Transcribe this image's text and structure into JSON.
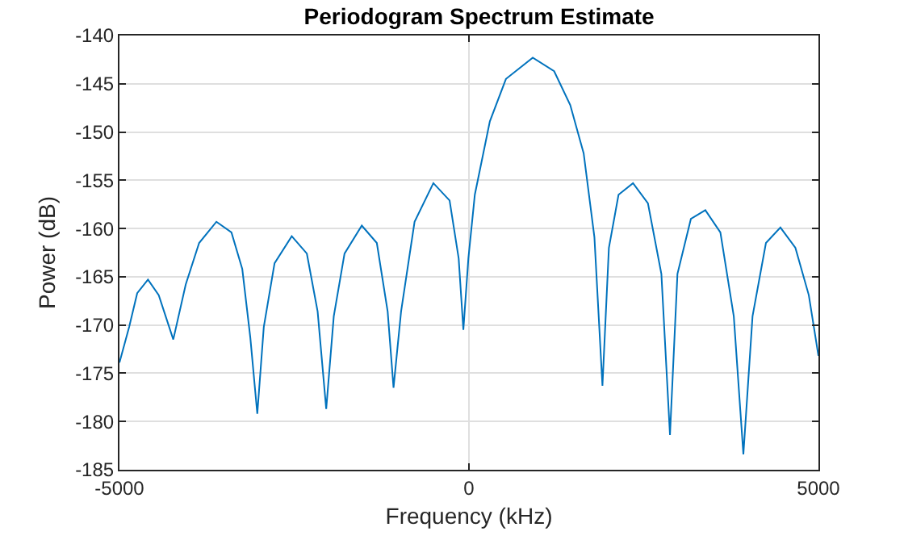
{
  "chart_data": {
    "type": "line",
    "title": "Periodogram Spectrum Estimate",
    "xlabel": "Frequency (kHz)",
    "ylabel": "Power (dB)",
    "x": [
      -5000,
      -4861,
      -4746,
      -4592,
      -4438,
      -4230,
      -4052,
      -3860,
      -3613,
      -3398,
      -3243,
      -3128,
      -3028,
      -2935,
      -2781,
      -2535,
      -2319,
      -2165,
      -2042,
      -1934,
      -1780,
      -1533,
      -1318,
      -1163,
      -1079,
      -971,
      -778,
      -509,
      -277,
      -147,
      -80,
      -8,
      84,
      299,
      529,
      913,
      1219,
      1449,
      1641,
      1795,
      1910,
      2002,
      2140,
      2347,
      2561,
      2753,
      2876,
      2983,
      3175,
      3382,
      3597,
      3789,
      3926,
      4057,
      4249,
      4456,
      4670,
      4862,
      5000
    ],
    "series": [
      {
        "color": "#0072bd",
        "values": [
          -173.9,
          -170.2,
          -166.7,
          -165.3,
          -166.9,
          -171.5,
          -165.8,
          -161.5,
          -159.3,
          -160.4,
          -164.2,
          -171.3,
          -179.2,
          -170.2,
          -163.6,
          -160.8,
          -162.6,
          -168.6,
          -178.7,
          -169.1,
          -162.6,
          -159.7,
          -161.5,
          -168.6,
          -176.5,
          -168.6,
          -159.3,
          -155.3,
          -157.1,
          -163.1,
          -170.5,
          -163.1,
          -156.5,
          -148.9,
          -144.5,
          -142.3,
          -143.7,
          -147.2,
          -152.2,
          -160.9,
          -176.3,
          -162.0,
          -156.5,
          -155.3,
          -157.4,
          -164.7,
          -181.4,
          -164.7,
          -159.0,
          -158.1,
          -160.4,
          -169.1,
          -183.4,
          -169.1,
          -161.5,
          -159.9,
          -162.0,
          -166.9,
          -173.2
        ]
      }
    ],
    "xlim": [
      -5000,
      5000
    ],
    "xticks": [
      -5000,
      0,
      5000
    ],
    "ylim": [
      -185,
      -140
    ],
    "yticks": [
      -185,
      -180,
      -175,
      -170,
      -165,
      -160,
      -155,
      -150,
      -145,
      -140
    ],
    "grid": true,
    "line_style": "solid"
  }
}
